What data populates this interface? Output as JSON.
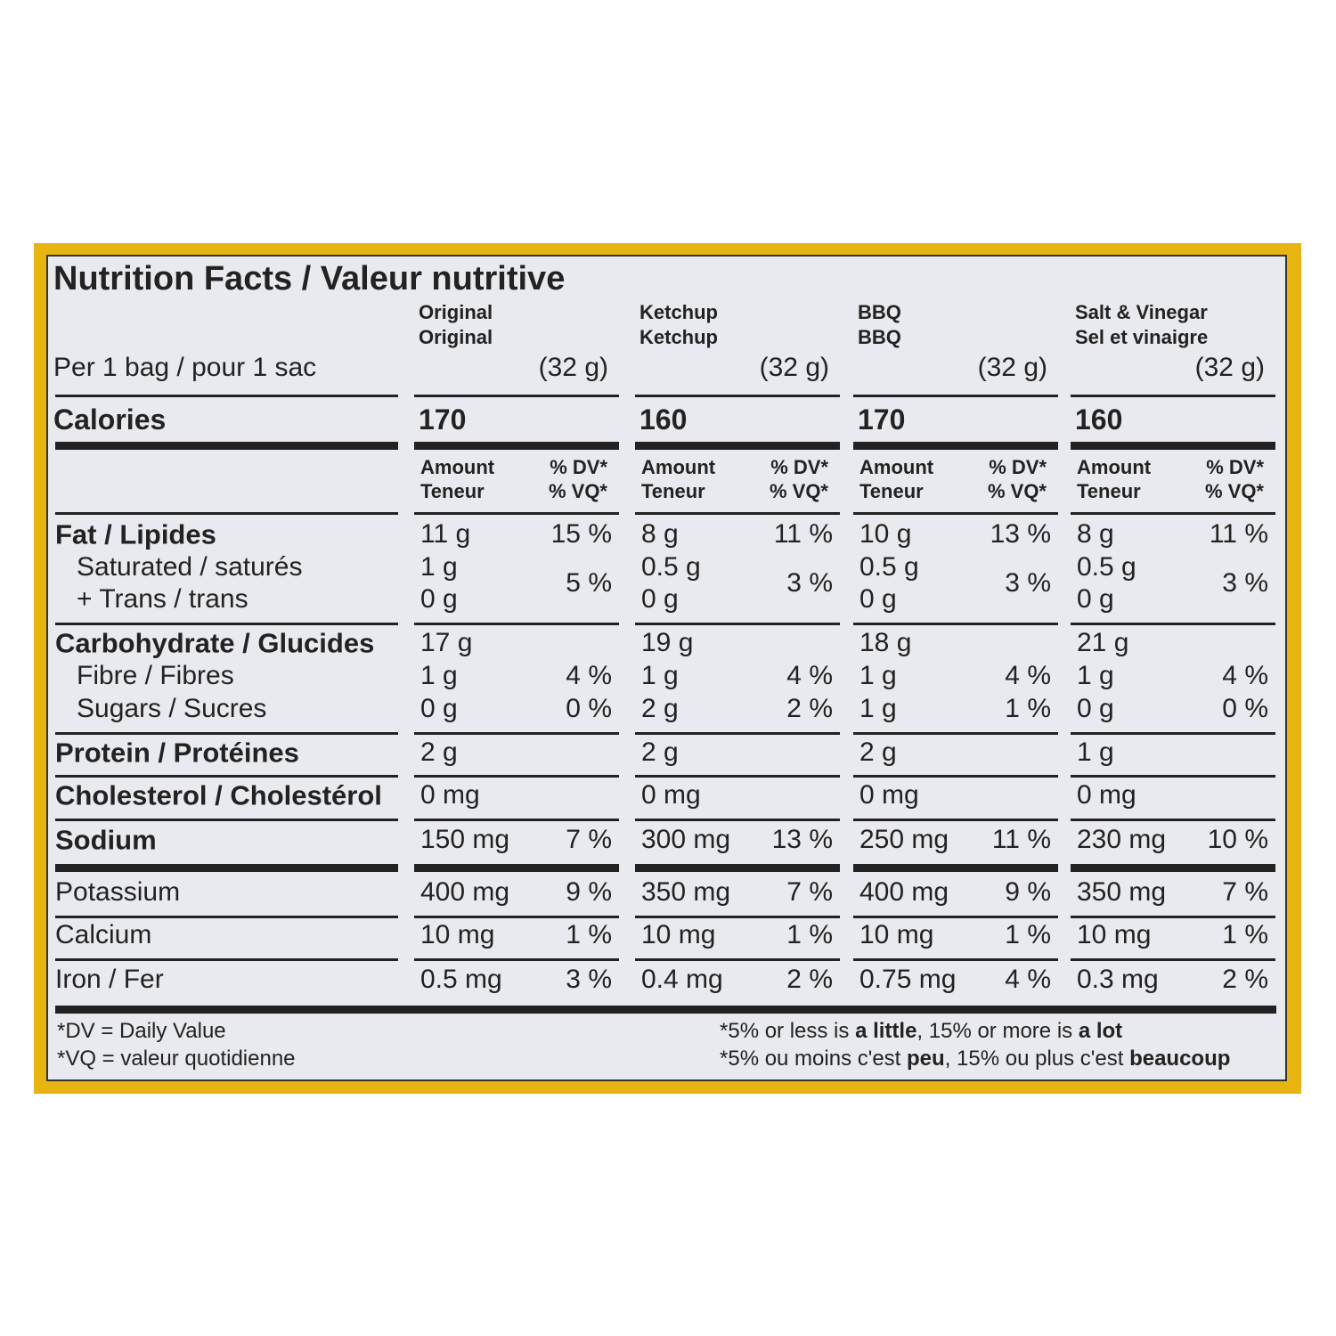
{
  "title": "Nutrition Facts / Valeur nutritive",
  "serving": "Per 1 bag / pour 1 sac",
  "calories_label": "Calories",
  "amount_header": {
    "en": "Amount",
    "fr": "Teneur"
  },
  "dv_header": {
    "en": "% DV*",
    "fr": "% VQ*"
  },
  "labels": {
    "fat": "Fat / Lipides",
    "saturated": "Saturated / saturés",
    "trans": "+ Trans / trans",
    "carbohydrate": "Carbohydrate / Glucides",
    "fibre": "Fibre / Fibres",
    "sugars": "Sugars / Sucres",
    "protein": "Protein / Protéines",
    "cholesterol": "Cholesterol / Cholestérol",
    "sodium": "Sodium",
    "potassium": "Potassium",
    "calcium": "Calcium",
    "iron": "Iron / Fer"
  },
  "columns": [
    {
      "name": [
        "Original",
        "Original"
      ],
      "serving_size": "(32 g)",
      "calories": 170,
      "fat": "11 g",
      "fat_dv": "15 %",
      "saturated": "1 g",
      "trans": "0 g",
      "sat_trans_dv": "5 %",
      "carbohydrate": "17 g",
      "fibre": "1 g",
      "fibre_dv": "4 %",
      "sugars": "0 g",
      "sugars_dv": "0 %",
      "protein": "2 g",
      "cholesterol": "0 mg",
      "sodium": "150 mg",
      "sodium_dv": "7 %",
      "potassium": "400 mg",
      "potassium_dv": "9 %",
      "calcium": "10 mg",
      "calcium_dv": "1 %",
      "iron": "0.5 mg",
      "iron_dv": "3 %"
    },
    {
      "name": [
        "Ketchup",
        "Ketchup"
      ],
      "serving_size": "(32 g)",
      "calories": 160,
      "fat": "8 g",
      "fat_dv": "11 %",
      "saturated": "0.5 g",
      "trans": "0 g",
      "sat_trans_dv": "3 %",
      "carbohydrate": "19 g",
      "fibre": "1 g",
      "fibre_dv": "4 %",
      "sugars": "2 g",
      "sugars_dv": "2 %",
      "protein": "2 g",
      "cholesterol": "0 mg",
      "sodium": "300 mg",
      "sodium_dv": "13 %",
      "potassium": "350 mg",
      "potassium_dv": "7 %",
      "calcium": "10 mg",
      "calcium_dv": "1 %",
      "iron": "0.4 mg",
      "iron_dv": "2 %"
    },
    {
      "name": [
        "BBQ",
        "BBQ"
      ],
      "serving_size": "(32 g)",
      "calories": 170,
      "fat": "10 g",
      "fat_dv": "13 %",
      "saturated": "0.5 g",
      "trans": "0 g",
      "sat_trans_dv": "3 %",
      "carbohydrate": "18 g",
      "fibre": "1 g",
      "fibre_dv": "4 %",
      "sugars": "1 g",
      "sugars_dv": "1 %",
      "protein": "2 g",
      "cholesterol": "0 mg",
      "sodium": "250 mg",
      "sodium_dv": "11 %",
      "potassium": "400 mg",
      "potassium_dv": "9 %",
      "calcium": "10 mg",
      "calcium_dv": "1 %",
      "iron": "0.75 mg",
      "iron_dv": "4 %"
    },
    {
      "name": [
        "Salt & Vinegar",
        "Sel et vinaigre"
      ],
      "serving_size": "(32 g)",
      "calories": 160,
      "fat": "8 g",
      "fat_dv": "11 %",
      "saturated": "0.5 g",
      "trans": "0 g",
      "sat_trans_dv": "3 %",
      "carbohydrate": "21 g",
      "fibre": "1 g",
      "fibre_dv": "4 %",
      "sugars": "0 g",
      "sugars_dv": "0 %",
      "protein": "1 g",
      "cholesterol": "0 mg",
      "sodium": "230 mg",
      "sodium_dv": "10 %",
      "potassium": "350 mg",
      "potassium_dv": "7 %",
      "calcium": "10 mg",
      "calcium_dv": "1 %",
      "iron": "0.3 mg",
      "iron_dv": "2 %"
    }
  ],
  "footnotes": {
    "dv": "*DV = Daily Value",
    "vq": "*VQ = valeur quotidienne",
    "scale_en": [
      "*5% or less is ",
      "a little",
      ", 15% or more is ",
      "a lot"
    ],
    "scale_fr": [
      "*5% ou moins c'est ",
      "peu",
      ", 15% ou plus c'est ",
      "beaucoup"
    ]
  }
}
